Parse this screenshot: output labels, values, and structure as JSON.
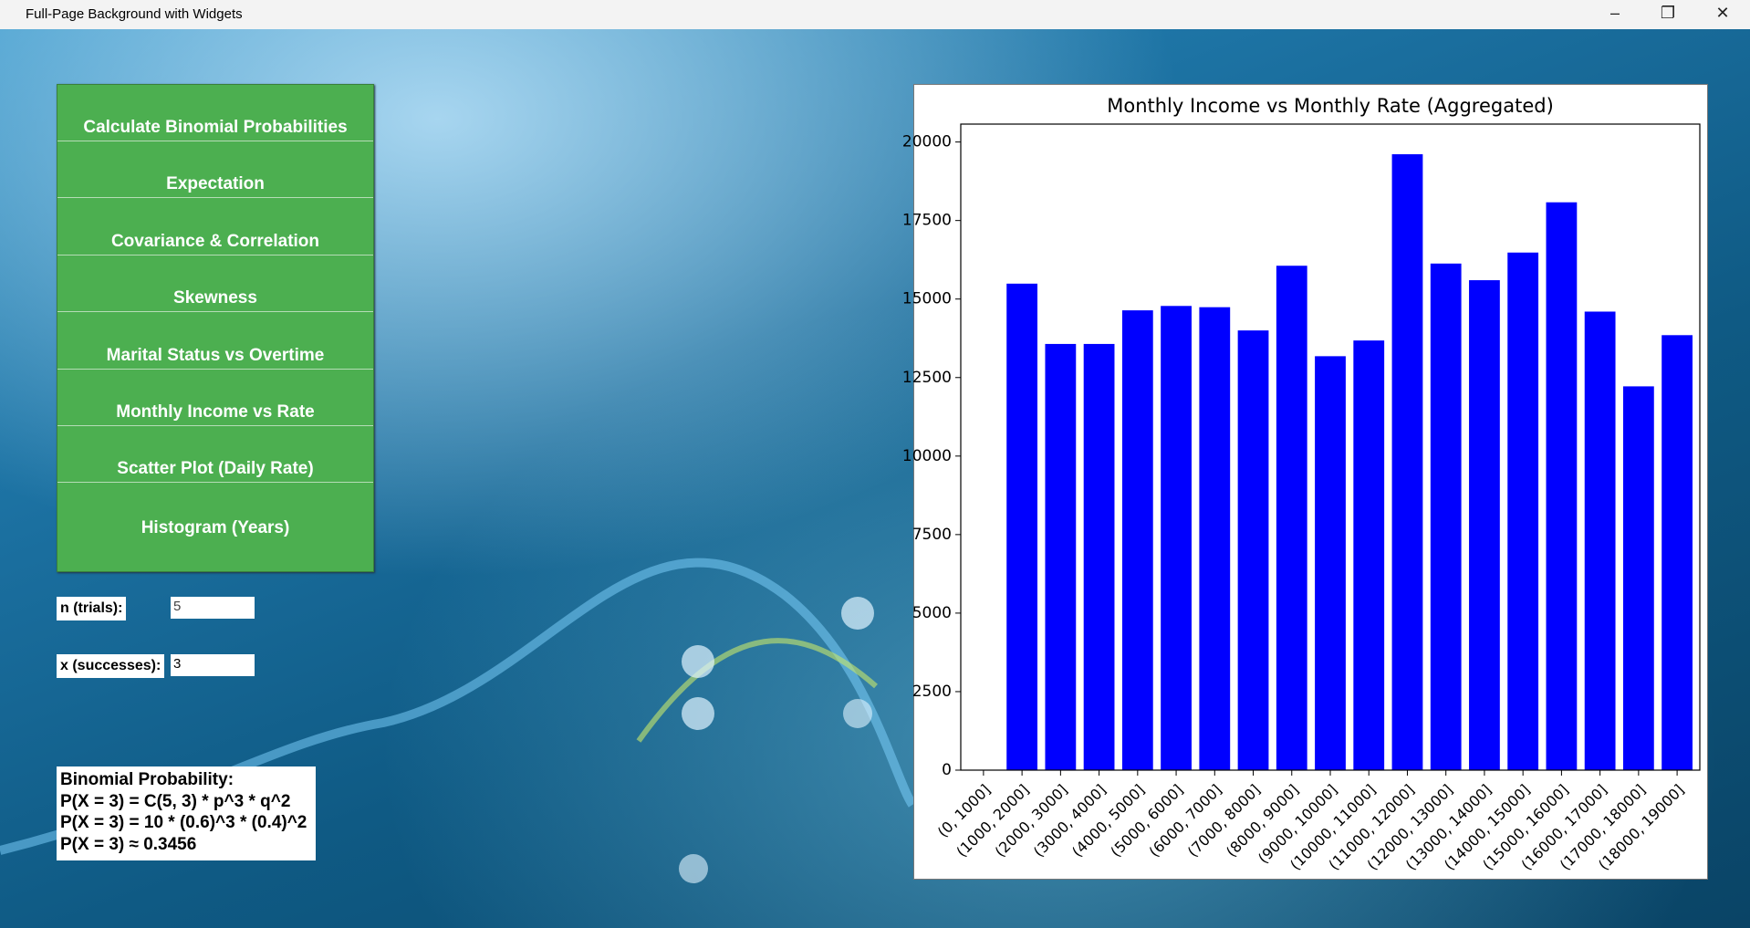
{
  "window": {
    "title": "Full-Page Background with Widgets"
  },
  "buttons": [
    "Calculate Binomial Probabilities",
    "Expectation",
    "Covariance & Correlation",
    "Skewness",
    "Marital Status vs Overtime",
    "Monthly Income vs Rate",
    "Scatter Plot (Daily Rate)",
    "Histogram (Years)"
  ],
  "inputs": [
    {
      "label": "n (trials):",
      "value": "5"
    },
    {
      "label": "x (successes):",
      "value": "3"
    }
  ],
  "result": [
    "Binomial Probability:",
    "P(X = 3) = C(5, 3) * p^3 * q^2",
    "P(X = 3) = 10 * (0.6)^3 * (0.4)^2",
    "P(X = 3) ≈ 0.3456"
  ],
  "chart_data": {
    "type": "bar",
    "title": "Monthly Income vs Monthly Rate (Aggregated)",
    "categories": [
      "(0, 1000]",
      "(1000, 2000]",
      "(2000, 3000]",
      "(3000, 4000]",
      "(4000, 5000]",
      "(5000, 6000]",
      "(6000, 7000]",
      "(7000, 8000]",
      "(8000, 9000]",
      "(9000, 10000]",
      "(10000, 11000]",
      "(11000, 12000]",
      "(12000, 13000]",
      "(13000, 14000]",
      "(14000, 15000]",
      "(15000, 16000]",
      "(16000, 17000]",
      "(17000, 18000]",
      "(18000, 19000]"
    ],
    "values": [
      0,
      15490,
      13570,
      13570,
      14640,
      14780,
      14740,
      14000,
      16060,
      13180,
      13680,
      19610,
      16130,
      15600,
      16480,
      18080,
      14600,
      12220,
      13850
    ],
    "color": "#0000ff",
    "ylim": [
      0,
      20570
    ],
    "yticks": [
      0,
      2500,
      5000,
      7500,
      10000,
      12500,
      15000,
      17500,
      20000
    ]
  }
}
